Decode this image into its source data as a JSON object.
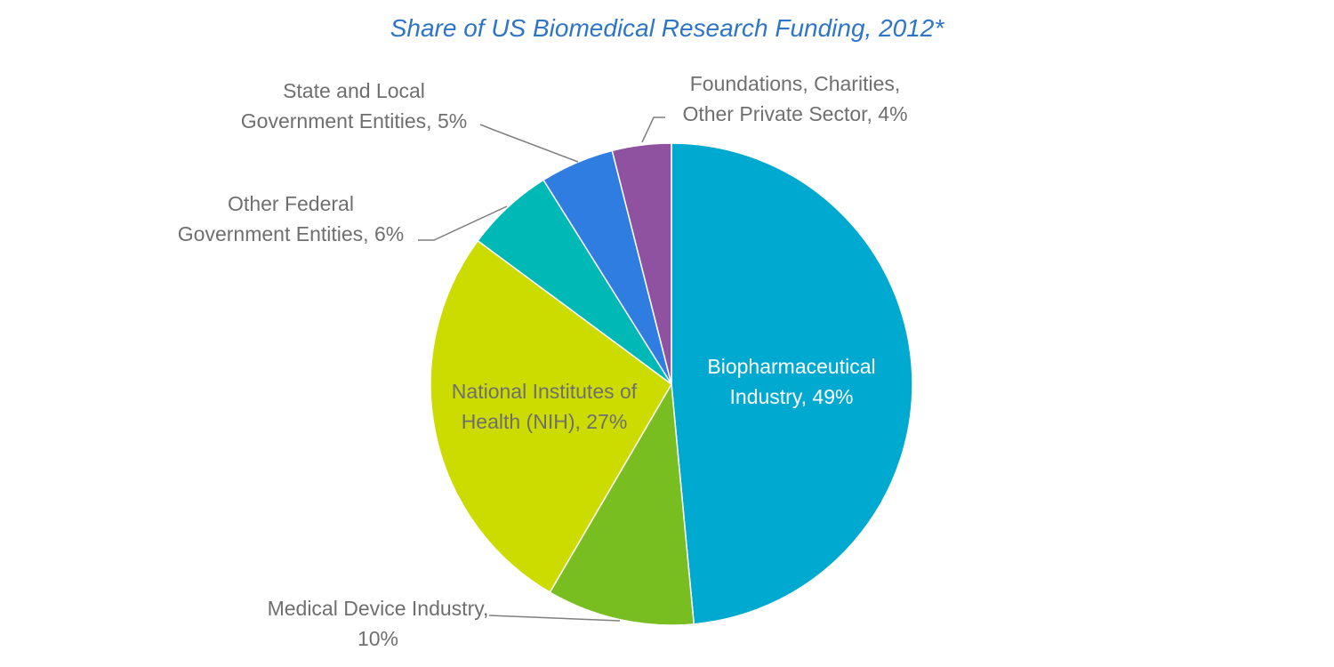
{
  "chart_data": {
    "type": "pie",
    "title": "Share of US Biomedical Research Funding, 2012*",
    "start_angle_deg": 0,
    "direction": "clockwise",
    "label_color": "#6f6f6f",
    "label_color_inside_dark": "#ffffff",
    "slices": [
      {
        "name": "Biopharmaceutical Industry",
        "value": 49,
        "color": "#00a9d0",
        "label_lines": [
          "Biopharmaceutical",
          "Industry, 49%"
        ],
        "label_inside": true,
        "label_light": true
      },
      {
        "name": "Medical Device Industry",
        "value": 10,
        "color": "#78be20",
        "label_lines": [
          "Medical Device  Industry,",
          "10%"
        ],
        "label_inside": false,
        "label_light": false
      },
      {
        "name": "National Institutes of Health (NIH)",
        "value": 27,
        "color": "#cddc00",
        "label_lines": [
          "National Institutes of",
          "Health (NIH), 27%"
        ],
        "label_inside": true,
        "label_light": false
      },
      {
        "name": "Other Federal Government Entities",
        "value": 6,
        "color": "#00b8b5",
        "label_lines": [
          "Other Federal",
          "Government Entities, 6%"
        ],
        "label_inside": false,
        "label_light": false
      },
      {
        "name": "State and Local Government Entities",
        "value": 5,
        "color": "#2f7de1",
        "label_lines": [
          "State and Local",
          "Government Entities, 5%"
        ],
        "label_inside": false,
        "label_light": false
      },
      {
        "name": "Foundations, Charities, Other Private Sector",
        "value": 4,
        "color": "#8e52a1",
        "label_lines": [
          "Foundations, Charities,",
          "Other Private Sector, 4%"
        ],
        "label_inside": false,
        "label_light": false
      }
    ]
  }
}
